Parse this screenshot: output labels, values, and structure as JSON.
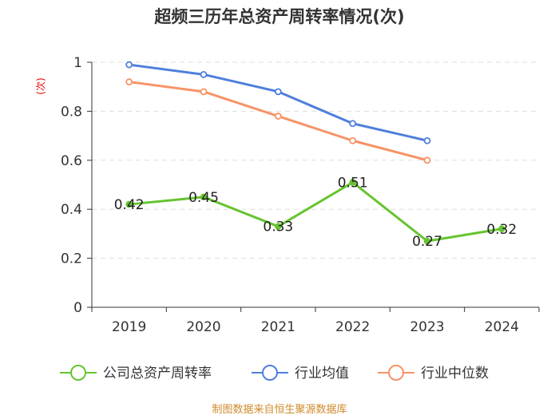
{
  "title": "超频三历年总资产周转率情况(次)",
  "source": "制图数据来自恒生聚源数据库",
  "colors": {
    "company": "#66c430",
    "industry_avg": "#4f7fdc",
    "industry_median": "#f79367",
    "axis": "#333333",
    "grid": "#dddddd"
  },
  "chart_data": {
    "type": "line",
    "title": "超频三历年总资产周转率情况(次)",
    "ylabel": "(次)",
    "xlabel": "",
    "ylim": [
      0,
      1
    ],
    "yticks": [
      0,
      0.2,
      0.4,
      0.6,
      0.8,
      1
    ],
    "ytick_labels": [
      "0",
      "0.2",
      "0.4",
      "0.6",
      "0.8",
      "1"
    ],
    "categories": [
      "2019",
      "2020",
      "2021",
      "2022",
      "2023",
      "2024"
    ],
    "grid": true,
    "legend_position": "bottom",
    "series": [
      {
        "name": "公司总资产周转率",
        "key": "company",
        "values": [
          0.42,
          0.45,
          0.33,
          0.51,
          0.27,
          0.32
        ],
        "labels": [
          "0.42",
          "0.45",
          "0.33",
          "0.51",
          "0.27",
          "0.32"
        ]
      },
      {
        "name": "行业均值",
        "key": "industry_avg",
        "values": [
          0.99,
          0.95,
          0.88,
          0.75,
          0.68,
          null
        ]
      },
      {
        "name": "行业中位数",
        "key": "industry_median",
        "values": [
          0.92,
          0.88,
          0.78,
          0.68,
          0.6,
          null
        ]
      }
    ]
  }
}
